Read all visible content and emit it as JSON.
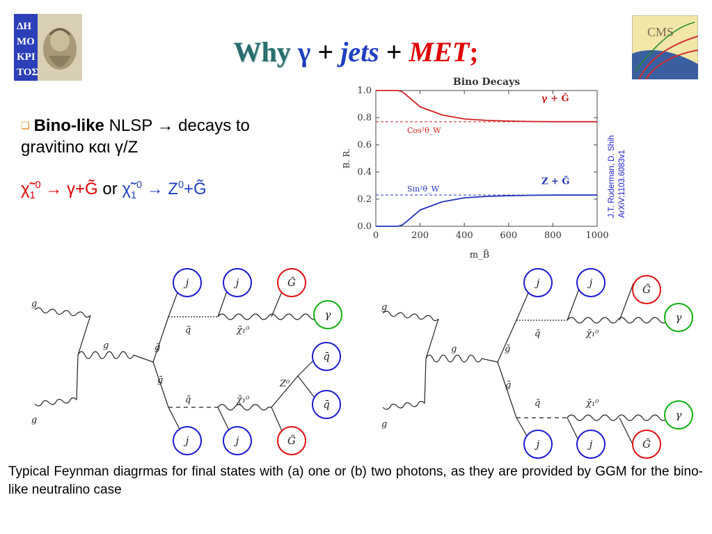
{
  "title": {
    "why": "Why",
    "gamma": "γ",
    "plus1": "+",
    "jets": "jets",
    "plus2": "+",
    "met": "MET",
    "semicolon": ";"
  },
  "bullet": {
    "strong": "Bino-like",
    "text1": " NLSP → decays to",
    "text2": "gravitino και γ/Z"
  },
  "chi_line": {
    "chi_red": "χ̃",
    "sub1": "1",
    "sup1": "0",
    "arrow_red": " → γ+G̃",
    "or": " or ",
    "chi_blue": "χ̃",
    "sub2": "1",
    "sup2": "0",
    "arrow_blue": " → Z",
    "sup3": "0",
    "g_blue": "+G̃"
  },
  "reference": {
    "line1": "J.T. Ruderman, D. Shih",
    "line2": "ArXiV:1103.6083v1"
  },
  "chart_data": {
    "type": "line",
    "title": "Bino Decays",
    "xlabel": "m_B̃",
    "ylabel": "B. R.",
    "xlim": [
      0,
      1000
    ],
    "ylim": [
      0,
      1.0
    ],
    "x_ticks": [
      "0",
      "200",
      "400",
      "600",
      "800",
      "1000"
    ],
    "y_ticks": [
      "0.0",
      "0.2",
      "0.4",
      "0.6",
      "0.8",
      "1.0"
    ],
    "series": [
      {
        "name": "γ + G̃",
        "color": "#cc2222",
        "x": [
          0,
          100,
          120,
          150,
          200,
          300,
          400,
          500,
          600,
          700,
          800,
          900,
          1000
        ],
        "y": [
          1.0,
          1.0,
          0.99,
          0.95,
          0.88,
          0.82,
          0.79,
          0.78,
          0.775,
          0.772,
          0.77,
          0.77,
          0.77
        ]
      },
      {
        "name": "Z + G̃",
        "color": "#2233bb",
        "x": [
          0,
          100,
          120,
          150,
          200,
          300,
          400,
          500,
          600,
          700,
          800,
          900,
          1000
        ],
        "y": [
          0.0,
          0.0,
          0.01,
          0.05,
          0.12,
          0.18,
          0.21,
          0.22,
          0.225,
          0.228,
          0.23,
          0.23,
          0.23
        ]
      }
    ],
    "reference_lines": [
      {
        "label": "Cos²θ_W",
        "y": 0.77,
        "color": "#cc2222"
      },
      {
        "label": "Sin²θ_W",
        "y": 0.23,
        "color": "#2233bb"
      }
    ],
    "grid": false,
    "legend": "inline"
  },
  "diagrams": {
    "a": {
      "gluon_top": "g",
      "gluon_bottom": "g",
      "gluon_mid": "g",
      "gluino_top": "g̃",
      "gluino_bottom": "g̃",
      "squark_top": "q̃",
      "squark_bottom": "q̃",
      "neutralino_top": "χ̃₁⁰",
      "neutralino_bottom": "χ̃₁⁰",
      "z_label": "Z⁰",
      "circles": [
        {
          "label": "j",
          "color": "#1a1ad0"
        },
        {
          "label": "j",
          "color": "#1a1ad0"
        },
        {
          "label": "G̃",
          "color": "#e01010"
        },
        {
          "label": "γ",
          "color": "#10b010"
        },
        {
          "label": "q̄",
          "color": "#1a1ad0"
        },
        {
          "label": "q̄",
          "color": "#1a1ad0"
        },
        {
          "label": "j",
          "color": "#1a1ad0"
        },
        {
          "label": "j",
          "color": "#1a1ad0"
        },
        {
          "label": "G̃",
          "color": "#e01010"
        }
      ]
    },
    "b": {
      "gluon_top": "g",
      "gluon_bottom": "g",
      "gluon_mid": "g",
      "gluino_top": "g̃",
      "gluino_bottom": "g̃",
      "squark_top": "q̃",
      "squark_bottom": "q̃",
      "neutralino_top": "χ̃₁⁰",
      "neutralino_bottom": "χ̃₁⁰",
      "circles": [
        {
          "label": "j",
          "color": "#1a1ad0"
        },
        {
          "label": "j",
          "color": "#1a1ad0"
        },
        {
          "label": "G̃",
          "color": "#e01010"
        },
        {
          "label": "γ",
          "color": "#10b010"
        },
        {
          "label": "γ",
          "color": "#10b010"
        },
        {
          "label": "j",
          "color": "#1a1ad0"
        },
        {
          "label": "j",
          "color": "#1a1ad0"
        },
        {
          "label": "G̃",
          "color": "#e01010"
        }
      ]
    }
  },
  "caption": "Typical Feynman diagrmas for final states with (a) one or (b) two photons, as they are provided by GGM for the bino-like neutralino  case",
  "logos": {
    "left_logo_text": "ΔΗ ΜΟ ΚΡΙ ΤΟΣ",
    "right_logo_text": "CMS"
  },
  "colors": {
    "title_teal": "#2a6e6e",
    "title_blue": "#1f3fbf",
    "title_red": "#e00000",
    "bullet_mark": "#d98b1e"
  }
}
